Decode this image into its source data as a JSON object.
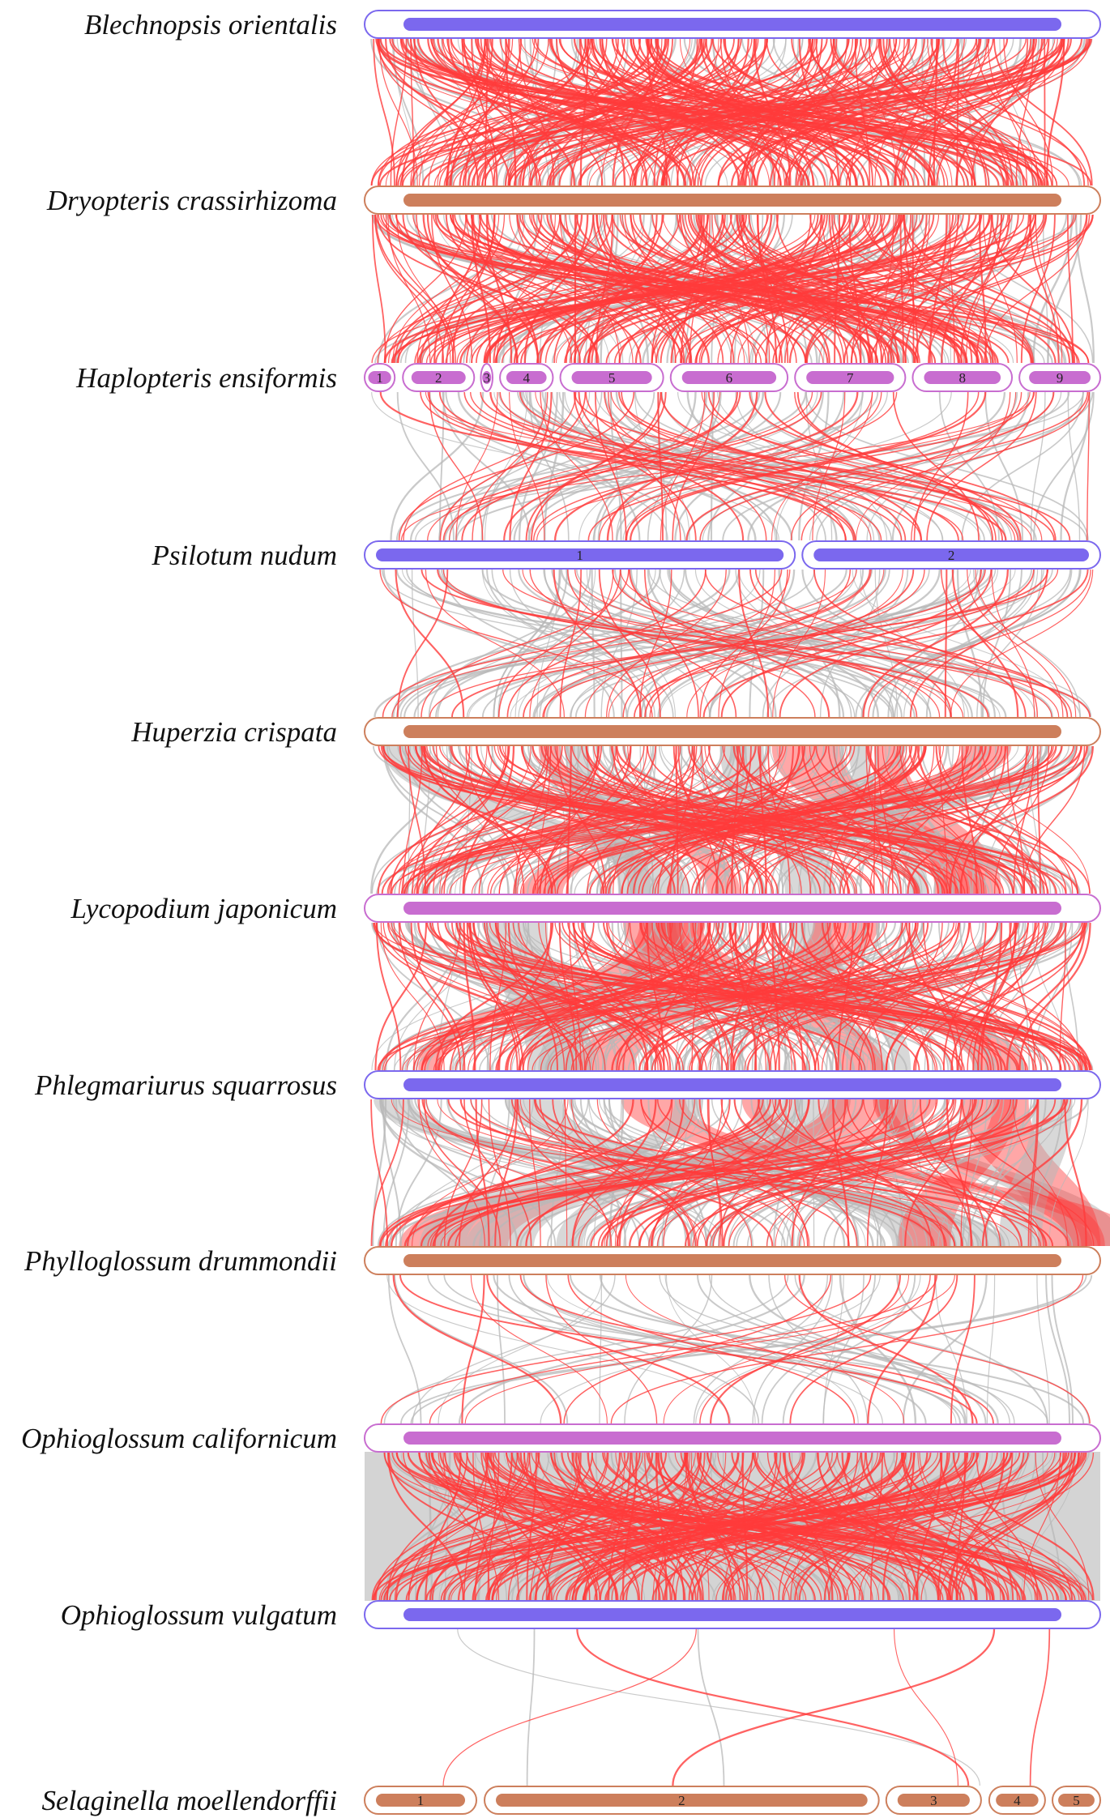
{
  "figure": {
    "species": [
      {
        "name": "Blechnopsis orientalis",
        "color": "#7b68ee",
        "chromosomes": [
          ""
        ]
      },
      {
        "name": "Dryopteris crassirhizoma",
        "color": "#cd7f5c",
        "chromosomes": [
          ""
        ]
      },
      {
        "name": "Haplopteris ensiformis",
        "color": "#c86dd0",
        "chromosomes": [
          "1",
          "2",
          "3",
          "4",
          "5",
          "6",
          "7",
          "8",
          "9"
        ]
      },
      {
        "name": "Psilotum nudum",
        "color": "#7b68ee",
        "chromosomes": [
          "1",
          "2"
        ]
      },
      {
        "name": "Huperzia crispata",
        "color": "#cd7f5c",
        "chromosomes": [
          ""
        ]
      },
      {
        "name": "Lycopodium japonicum",
        "color": "#c86dd0",
        "chromosomes": [
          ""
        ]
      },
      {
        "name": "Phlegmariurus squarrosus",
        "color": "#7b68ee",
        "chromosomes": [
          ""
        ]
      },
      {
        "name": "Phylloglossum drummondii",
        "color": "#cd7f5c",
        "chromosomes": [
          ""
        ]
      },
      {
        "name": "Ophioglossum californicum",
        "color": "#c86dd0",
        "chromosomes": [
          ""
        ]
      },
      {
        "name": "Ophioglossum vulgatum",
        "color": "#7b68ee",
        "chromosomes": [
          ""
        ]
      },
      {
        "name": "Selaginella moellendorffii",
        "color": "#cd7f5c",
        "chromosomes": [
          "1",
          "2",
          "3",
          "4",
          "5"
        ]
      }
    ],
    "link_colors": {
      "syntenic_highlight": "#ff3b3b",
      "background": "#b8b8b8"
    }
  }
}
